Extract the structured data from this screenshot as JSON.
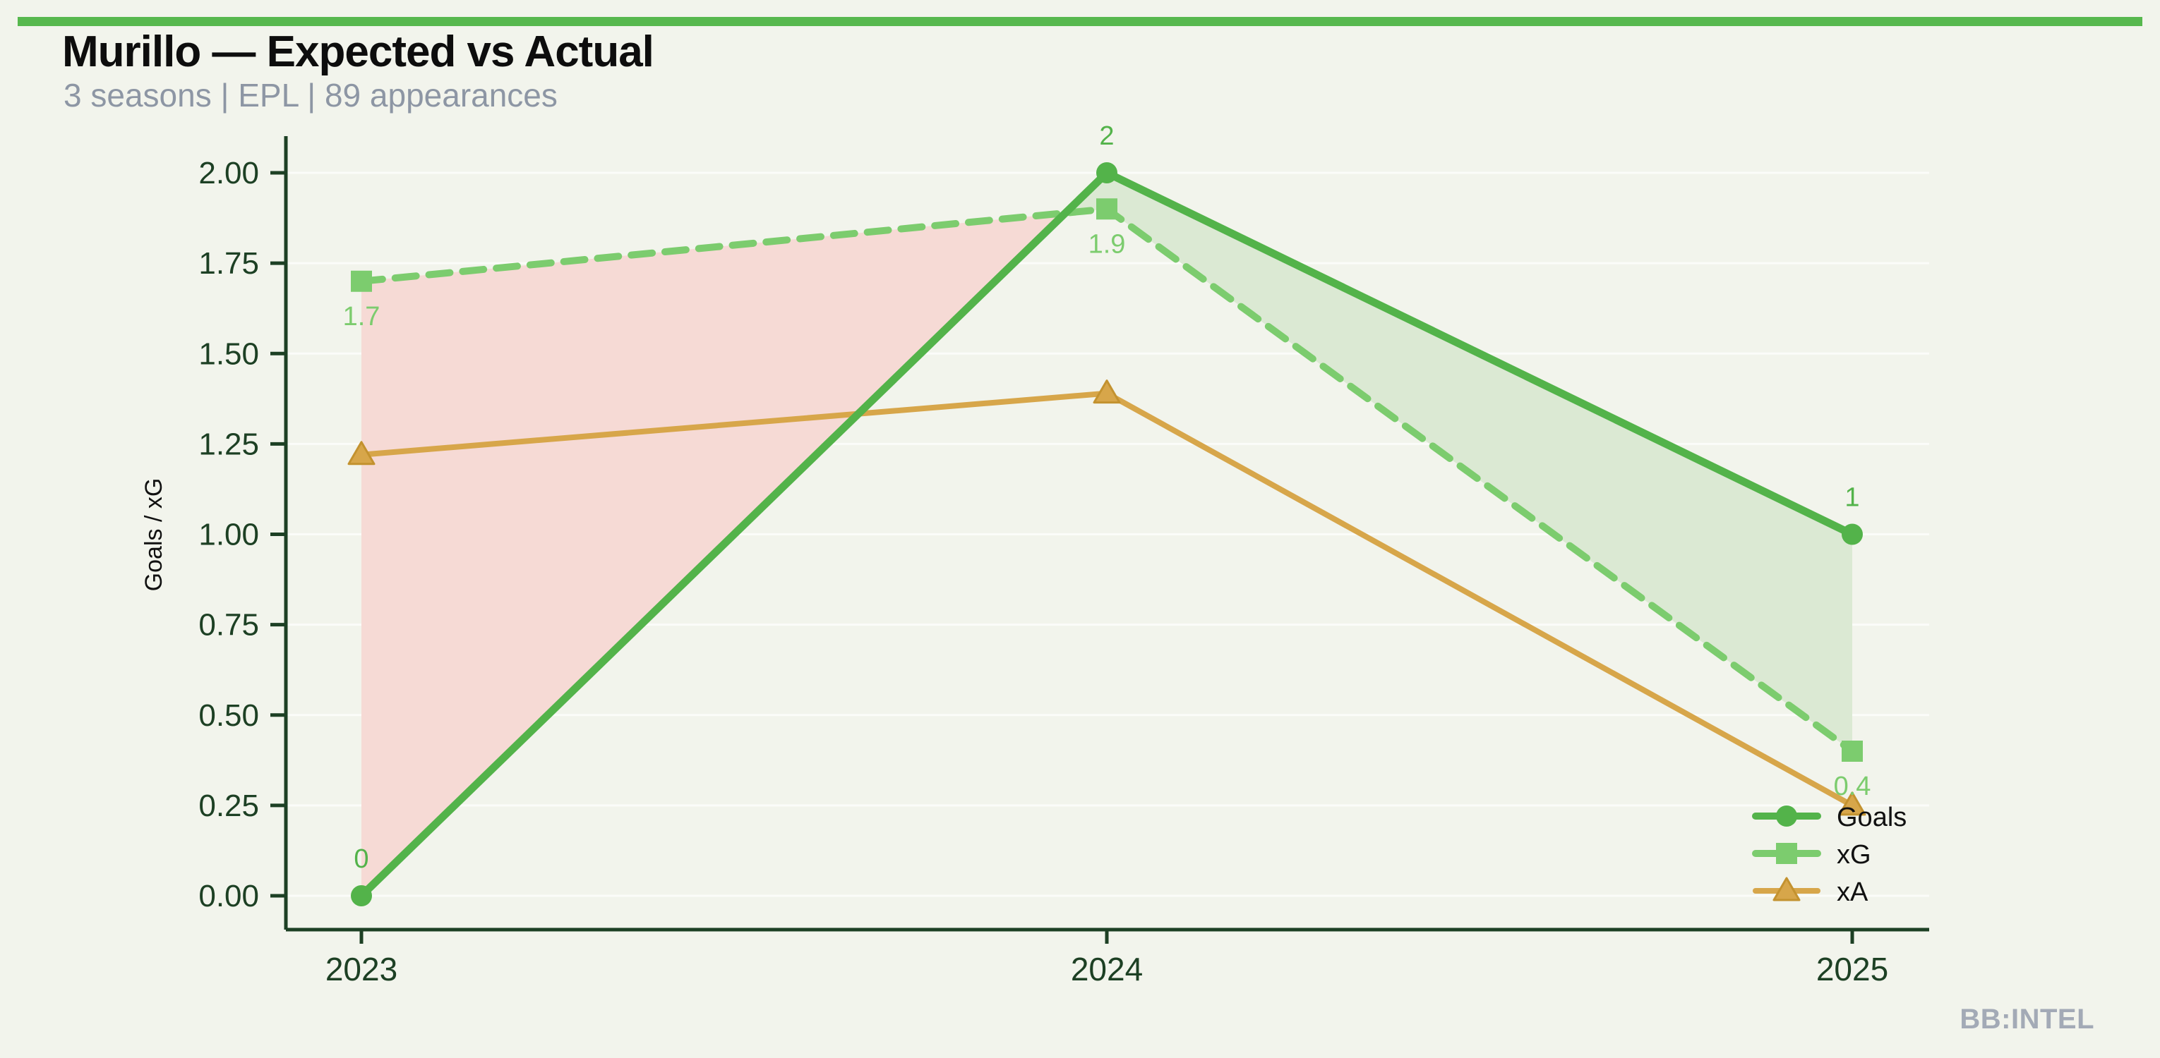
{
  "header": {
    "title": "Murillo — Expected vs Actual",
    "subtitle": "3 seasons | EPL | 89 appearances"
  },
  "footer": {
    "brand": "BB:INTEL"
  },
  "colors": {
    "background": "#f2f4ec",
    "accent_bar": "#57b84e",
    "axis": "#1d4024",
    "title_text": "#0d0d0d",
    "subtitle_text": "#8d96a4",
    "brand_text": "#a3aab6",
    "gridline": "rgba(255,255,255,0.7)",
    "fill_xg_above_goals": "#f6dad5",
    "fill_goals_above_xg": "#dbe9d3"
  },
  "chart_data": {
    "type": "line",
    "title": "Murillo — Expected vs Actual",
    "subtitle": "3 seasons | EPL | 89 appearances",
    "categories": [
      "2023",
      "2024",
      "2025"
    ],
    "series": [
      {
        "name": "Goals",
        "values": [
          0,
          2,
          1
        ],
        "point_labels": [
          "0",
          "2",
          "1"
        ],
        "color": "#53b34a",
        "marker": "circle",
        "line_style": "solid"
      },
      {
        "name": "xG",
        "values": [
          1.7,
          1.9,
          0.4
        ],
        "point_labels": [
          "1.7",
          "1.9",
          "0.4"
        ],
        "color": "#7ccc6e",
        "marker": "square",
        "line_style": "dashed"
      },
      {
        "name": "xA",
        "values": [
          1.22,
          1.39,
          0.25
        ],
        "point_labels": [],
        "color": "#d7a64a",
        "marker": "triangle",
        "marker_stroke": "#c3922f",
        "line_style": "solid"
      }
    ],
    "xlabel": "",
    "ylabel": "Goals / xG",
    "ylim": [
      0,
      2.0
    ],
    "ytick_labels": [
      "0.00",
      "0.25",
      "0.50",
      "0.75",
      "1.00",
      "1.25",
      "1.50",
      "1.75",
      "2.00"
    ],
    "grid": "horizontal-faint",
    "legend_position": "lower-right",
    "legend_entries": [
      "Goals",
      "xG",
      "xA"
    ],
    "fills_between": {
      "upper_when_xg_above": "#f6dad5",
      "upper_when_goals_above": "#dbe9d3",
      "between_series": [
        "xG",
        "Goals"
      ]
    }
  }
}
